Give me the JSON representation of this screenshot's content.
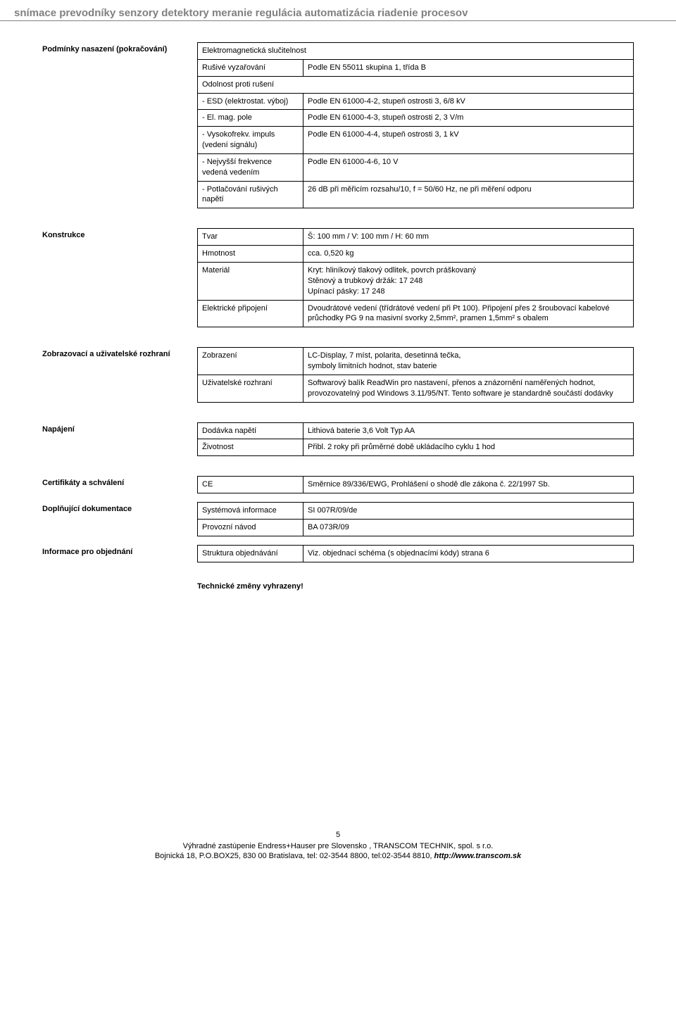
{
  "page_header": "snímace prevodníky senzory detektory meranie regulácia automatizácia riadenie procesov",
  "sections": {
    "podminky": {
      "label": "Podmínky nasazení (pokračování)",
      "rows": [
        {
          "l": "Elektromagnetická slučitelnost",
          "full": true
        },
        {
          "l": "Rušivé vyzařování",
          "r": "Podle EN 55011 skupina 1, třída B"
        },
        {
          "l": "Odolnost proti rušení",
          "full": true
        },
        {
          "l": "- ESD (elektrostat. výboj)",
          "r": "Podle EN 61000-4-2, stupeň ostrosti 3, 6/8 kV"
        },
        {
          "l": "- El. mag. pole",
          "r": "Podle EN 61000-4-3, stupeň ostrosti 2, 3 V/m"
        },
        {
          "l": "- Vysokofrekv. impuls (vedení signálu)",
          "r": "Podle EN 61000-4-4, stupeň ostrosti 3, 1 kV"
        },
        {
          "l": "- Nejvyšší frekvence vedená vedením",
          "r": "Podle EN 61000-4-6, 10 V"
        },
        {
          "l": "- Potlačování rušivých napětí",
          "r": "26 dB při měřicím rozsahu/10, f = 50/60 Hz, ne při měření odporu"
        }
      ]
    },
    "konstrukce": {
      "label": "Konstrukce",
      "rows": [
        {
          "l": "Tvar",
          "r": "Š: 100 mm / V: 100 mm / H: 60 mm"
        },
        {
          "l": "Hmotnost",
          "r": "cca. 0,520 kg"
        },
        {
          "l": "Materiál",
          "r": "Kryt: hliníkový tlakový odlitek, povrch práškovaný\nStěnový a trubkový držák: 17 248\nUpínací pásky: 17 248"
        },
        {
          "l": "Elektrické připojení",
          "r": "Dvoudrátové vedení (třídrátové vedení při Pt 100). Připojení přes 2 šroubovací kabelové průchodky PG 9 na masivní svorky 2,5mm², pramen 1,5mm² s obalem"
        }
      ]
    },
    "zobrazovaci": {
      "label": "Zobrazovací a uživatelské rozhraní",
      "rows": [
        {
          "l": "Zobrazení",
          "r": "LC-Display, 7 míst, polarita, desetinná tečka,\nsymboly limitních hodnot, stav baterie"
        },
        {
          "l": "Uživatelské rozhraní",
          "r": "Softwarový balík ReadWin pro nastavení, přenos a znázornění naměřených hodnot, provozovatelný pod Windows 3.11/95/NT. Tento software je standardně součástí dodávky"
        }
      ]
    },
    "napajeni": {
      "label": "Napájení",
      "rows": [
        {
          "l": "Dodávka napětí",
          "r": "Lithiová baterie 3,6 Volt Typ AA"
        },
        {
          "l": "Životnost",
          "r": "Přibl. 2 roky při průměrné době ukládacího cyklu 1 hod"
        }
      ]
    },
    "certifikaty": {
      "label": "Certifikáty a schválení",
      "rows": [
        {
          "l": "CE",
          "r": "Směrnice 89/336/EWG, Prohlášení o shodě dle zákona č. 22/1997 Sb."
        }
      ]
    },
    "doplnujici": {
      "label": "Doplňující dokumentace",
      "rows": [
        {
          "l": "Systémová informace",
          "r": "SI 007R/09/de"
        },
        {
          "l": "Provozní návod",
          "r": "BA 073R/09"
        }
      ]
    },
    "informace": {
      "label": "Informace pro objednání",
      "rows": [
        {
          "l": "Struktura objednávání",
          "r": "Viz. objednací schéma (s objednacími kódy) strana 6"
        }
      ]
    }
  },
  "tech_note": "Technické změny vyhrazeny!",
  "footer": {
    "page_number": "5",
    "line1_a": "Výhradné zastúpenie Endress+Hauser pre Slovensko , TRANSCOM TECHNIK, spol. s r.o.",
    "line2_a": "Bojnická 18, P.O.BOX25, 830 00 Bratislava, tel: 02-3544 8800, tel:02-3544 8810,  ",
    "line2_link": "http://www.transcom.sk"
  }
}
